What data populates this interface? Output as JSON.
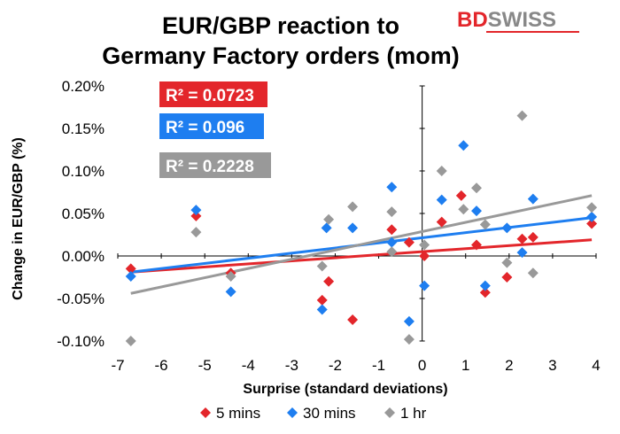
{
  "chart_data": {
    "type": "scatter",
    "title_lines": [
      "EUR/GBP reaction to",
      "Germany Factory orders (mom)"
    ],
    "xlabel": "Surprise (standard deviations)",
    "ylabel": "Change in EUR/GBP (%)",
    "xlim": [
      -7,
      4
    ],
    "ylim": [
      -0.001,
      0.002
    ],
    "x_ticks": [
      -7,
      -6,
      -5,
      -4,
      -3,
      -2,
      -1,
      0,
      1,
      2,
      3,
      4
    ],
    "x_tick_labels": [
      "-7",
      "-6",
      "-5",
      "-4",
      "-3",
      "-2",
      "-1",
      "0",
      "1",
      "2",
      "3",
      "4"
    ],
    "y_ticks": [
      -0.001,
      -0.0005,
      0,
      0.0005,
      0.001,
      0.0015,
      0.002
    ],
    "y_tick_labels": [
      "-0.10%",
      "-0.05%",
      "0.00%",
      "0.05%",
      "0.10%",
      "0.15%",
      "0.20%"
    ],
    "grid": false,
    "legend_position": "bottom",
    "series": [
      {
        "name": "5 mins",
        "color": "#e3262b",
        "points": [
          [
            -6.7,
            -0.00015
          ],
          [
            -5.2,
            0.00047
          ],
          [
            -4.4,
            -0.0002
          ],
          [
            -2.3,
            -0.00052
          ],
          [
            -2.15,
            -0.0003
          ],
          [
            -1.6,
            -0.00075
          ],
          [
            -0.7,
            0.00031
          ],
          [
            -0.3,
            0.00016
          ],
          [
            0.05,
            0.0
          ],
          [
            0.45,
            0.0004
          ],
          [
            0.9,
            0.00071
          ],
          [
            1.25,
            0.00013
          ],
          [
            1.45,
            -0.00043
          ],
          [
            1.95,
            -0.00025
          ],
          [
            2.3,
            0.0002
          ],
          [
            2.55,
            0.00022
          ],
          [
            3.9,
            0.00038
          ]
        ],
        "trend": {
          "x": [
            -6.7,
            3.9
          ],
          "y": [
            -0.00019,
            0.00019
          ]
        },
        "r2_label": "R² = 0.0723"
      },
      {
        "name": "30 mins",
        "color": "#1e7ef0",
        "points": [
          [
            -6.7,
            -0.00024
          ],
          [
            -5.2,
            0.00054
          ],
          [
            -4.4,
            -0.00042
          ],
          [
            -2.3,
            -0.00063
          ],
          [
            -2.2,
            0.00033
          ],
          [
            -1.6,
            0.00033
          ],
          [
            -0.7,
            0.00081
          ],
          [
            -0.7,
            0.00016
          ],
          [
            -0.3,
            -0.00077
          ],
          [
            0.05,
            -0.00035
          ],
          [
            0.45,
            0.00066
          ],
          [
            0.95,
            0.0013
          ],
          [
            1.25,
            0.00053
          ],
          [
            1.45,
            -0.00035
          ],
          [
            1.95,
            0.00033
          ],
          [
            2.3,
            4e-05
          ],
          [
            2.55,
            0.00067
          ],
          [
            3.9,
            0.00046
          ]
        ],
        "trend": {
          "x": [
            -6.7,
            3.9
          ],
          "y": [
            -0.00019,
            0.00045
          ]
        },
        "r2_label": "R² = 0.096"
      },
      {
        "name": "1 hr",
        "color": "#999999",
        "points": [
          [
            -6.7,
            -0.001
          ],
          [
            -5.2,
            0.00028
          ],
          [
            -4.4,
            -0.00024
          ],
          [
            -2.3,
            -0.00012
          ],
          [
            -2.15,
            0.00043
          ],
          [
            -1.6,
            0.00058
          ],
          [
            -0.7,
            0.00052
          ],
          [
            -0.7,
            5e-05
          ],
          [
            -0.3,
            -0.00098
          ],
          [
            0.05,
            0.00013
          ],
          [
            0.45,
            0.001
          ],
          [
            0.95,
            0.00055
          ],
          [
            1.25,
            0.0008
          ],
          [
            1.45,
            0.00037
          ],
          [
            1.95,
            -8e-05
          ],
          [
            2.3,
            0.00165
          ],
          [
            2.55,
            -0.0002
          ],
          [
            3.9,
            0.00057
          ]
        ],
        "trend": {
          "x": [
            -6.7,
            3.9
          ],
          "y": [
            -0.00044,
            0.00071
          ]
        },
        "r2_label": "R² = 0.2228"
      }
    ]
  },
  "logo": {
    "text_a": "BD",
    "text_b": "SWISS",
    "color_a": "#e3262b",
    "color_b": "#888888"
  }
}
